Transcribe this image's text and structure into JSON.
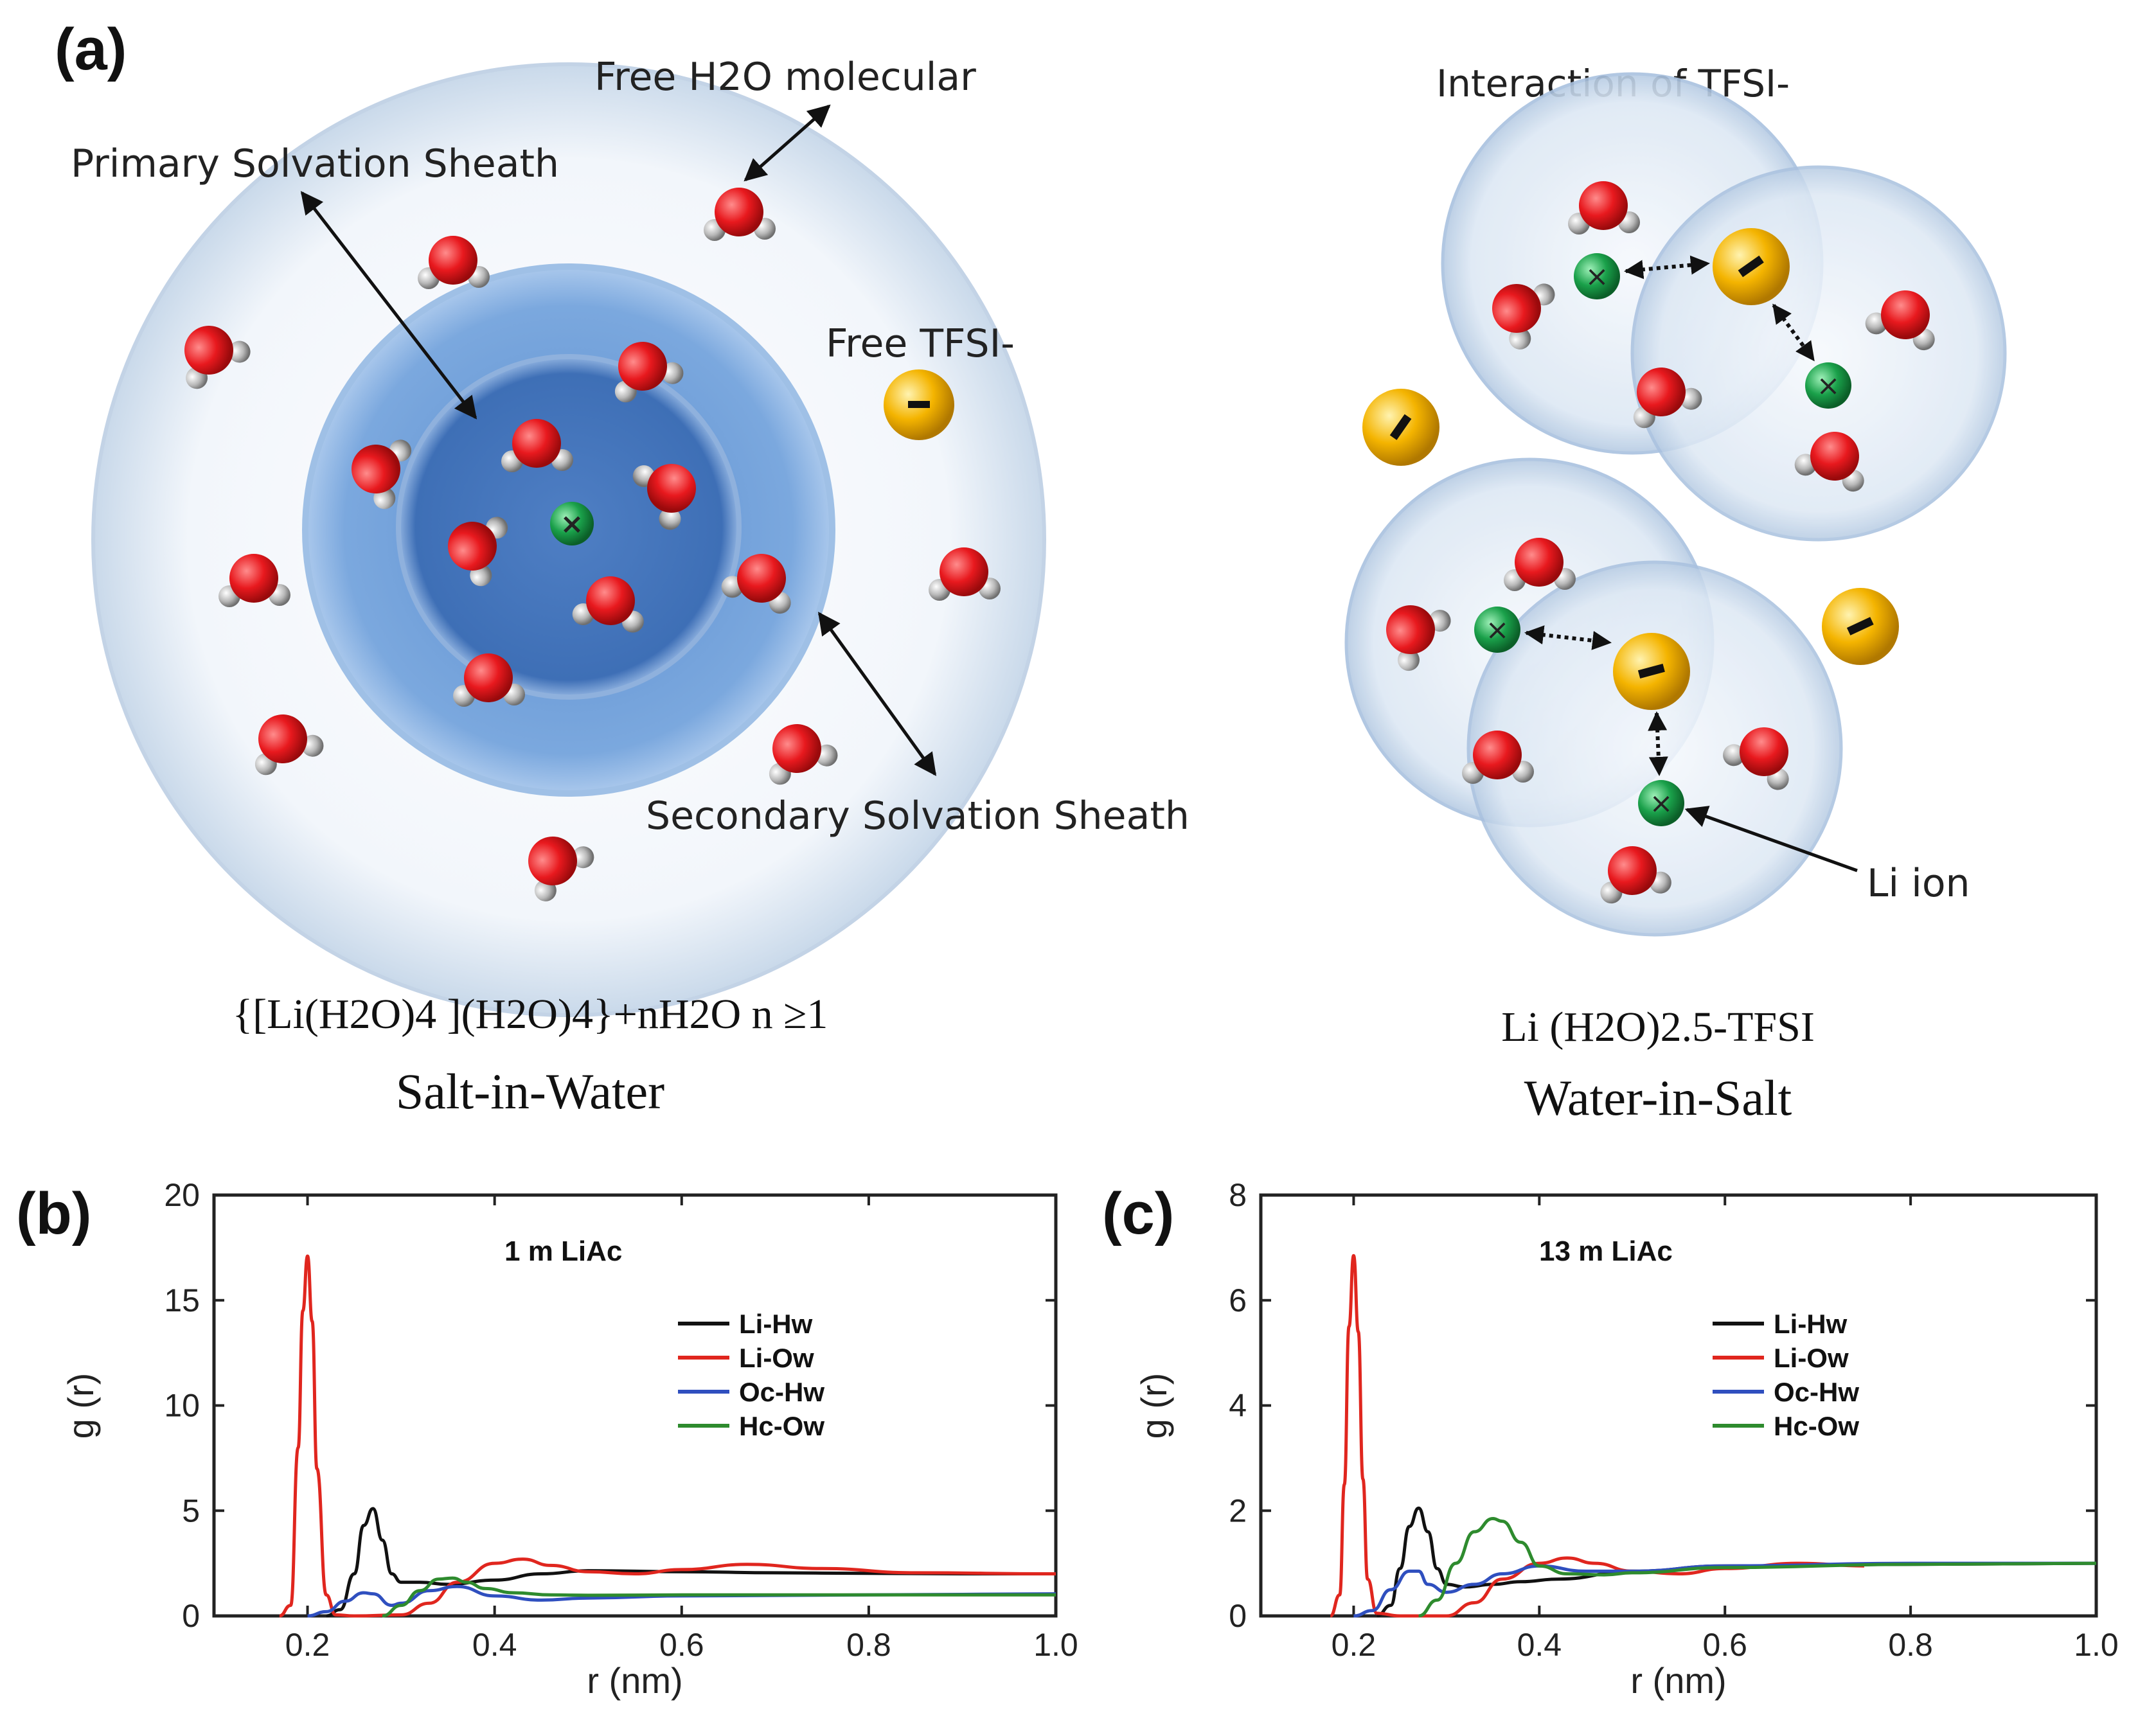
{
  "panel_a": {
    "label": "(a)",
    "free_h2o_label": "Free H2O molecular",
    "primary_label": "Primary  Solvation Sheath",
    "secondary_label": "Secondary Solvation Sheath",
    "free_tfsi_label": "Free TFSI-",
    "interaction_label": "Interaction  of  TFSI-",
    "li_ion_label": "Li ion",
    "left_formula": "{[Li(H2O)4 ](H2O)4}+nH2O n ≥1",
    "left_caption": "Salt-in-Water",
    "right_formula": "Li (H2O)2.5-TFSI",
    "right_caption": "Water-in-Salt",
    "colors": {
      "oxygen": "#e8191e",
      "hydrogen": "#b8b8b8",
      "li_ion": "#1aa04a",
      "tfsi": "#f4b400",
      "shell": "#dfe9f4"
    }
  },
  "chart_data": [
    {
      "type": "line",
      "panel_label": "(b)",
      "title": "1 m LiAc",
      "xlabel": "r (nm)",
      "ylabel": "g (r)",
      "xlim": [
        0.1,
        1.0
      ],
      "ylim": [
        0,
        20
      ],
      "xticks": [
        0.2,
        0.4,
        0.6,
        0.8,
        1.0
      ],
      "xtick_labels": [
        "0.2",
        "0.4",
        "0.6",
        "0.8",
        "1.0"
      ],
      "yticks": [
        0,
        5,
        10,
        15,
        20
      ],
      "ytick_labels": [
        "0",
        "5",
        "10",
        "15",
        "20"
      ],
      "legend_position": "upper-right",
      "series": [
        {
          "name": "Li-Hw",
          "color": "#111111",
          "x": [
            0.22,
            0.235,
            0.25,
            0.26,
            0.27,
            0.28,
            0.29,
            0.3,
            0.32,
            0.35,
            0.4,
            0.45,
            0.5,
            0.6,
            0.7,
            0.8,
            0.9,
            1.0
          ],
          "y": [
            0,
            0.3,
            2.0,
            4.3,
            5.1,
            3.6,
            2.0,
            1.6,
            1.6,
            1.5,
            1.7,
            2.0,
            2.15,
            2.1,
            2.05,
            2.02,
            2.0,
            2.0
          ]
        },
        {
          "name": "Li-Ow",
          "color": "#e0261e",
          "x": [
            0.17,
            0.182,
            0.19,
            0.195,
            0.2,
            0.205,
            0.21,
            0.22,
            0.23,
            0.25,
            0.3,
            0.33,
            0.36,
            0.4,
            0.43,
            0.46,
            0.5,
            0.55,
            0.6,
            0.67,
            0.75,
            0.85,
            1.0
          ],
          "y": [
            0,
            0.5,
            8.0,
            14.5,
            17.1,
            14.0,
            7.0,
            1.0,
            0.05,
            0.0,
            0.05,
            0.6,
            1.6,
            2.5,
            2.7,
            2.4,
            2.1,
            2.0,
            2.2,
            2.45,
            2.25,
            2.05,
            2.0
          ]
        },
        {
          "name": "Oc-Hw",
          "color": "#2f4fbf",
          "x": [
            0.2,
            0.22,
            0.24,
            0.26,
            0.27,
            0.29,
            0.3,
            0.33,
            0.36,
            0.4,
            0.45,
            0.5,
            0.6,
            0.8,
            1.0
          ],
          "y": [
            0,
            0.2,
            0.7,
            1.1,
            1.05,
            0.5,
            0.6,
            1.2,
            1.4,
            0.95,
            0.75,
            0.85,
            0.95,
            1.0,
            1.05
          ]
        },
        {
          "name": "Hc-Ow",
          "color": "#2e8b2e",
          "x": [
            0.28,
            0.3,
            0.32,
            0.34,
            0.355,
            0.37,
            0.39,
            0.42,
            0.46,
            0.5,
            0.6,
            0.8,
            1.0
          ],
          "y": [
            0,
            0.5,
            1.2,
            1.75,
            1.8,
            1.6,
            1.3,
            1.1,
            1.0,
            0.98,
            1.0,
            1.0,
            1.0
          ]
        }
      ]
    },
    {
      "type": "line",
      "panel_label": "(c)",
      "title": "13 m LiAc",
      "xlabel": "r (nm)",
      "ylabel": "g (r)",
      "xlim": [
        0.1,
        1.0
      ],
      "ylim": [
        0,
        8
      ],
      "xticks": [
        0.2,
        0.4,
        0.6,
        0.8,
        1.0
      ],
      "xtick_labels": [
        "0.2",
        "0.4",
        "0.6",
        "0.8",
        "1.0"
      ],
      "yticks": [
        0,
        2,
        4,
        6,
        8
      ],
      "ytick_labels": [
        "0",
        "2",
        "4",
        "6",
        "8"
      ],
      "legend_position": "upper-right",
      "series": [
        {
          "name": "Li-Hw",
          "color": "#111111",
          "x": [
            0.225,
            0.24,
            0.25,
            0.26,
            0.27,
            0.28,
            0.29,
            0.3,
            0.32,
            0.35,
            0.38,
            0.42,
            0.5,
            0.6,
            0.8,
            1.0
          ],
          "y": [
            0,
            0.2,
            0.9,
            1.7,
            2.05,
            1.6,
            0.9,
            0.6,
            0.55,
            0.6,
            0.65,
            0.7,
            0.85,
            0.95,
            0.98,
            1.0
          ]
        },
        {
          "name": "Li-Ow",
          "color": "#e0261e",
          "x": [
            0.175,
            0.185,
            0.19,
            0.195,
            0.2,
            0.205,
            0.21,
            0.215,
            0.225,
            0.25,
            0.3,
            0.33,
            0.36,
            0.4,
            0.43,
            0.46,
            0.5,
            0.55,
            0.6,
            0.68,
            0.75
          ],
          "y": [
            0,
            0.4,
            2.5,
            5.5,
            6.85,
            5.4,
            2.6,
            0.7,
            0.05,
            0.0,
            0.0,
            0.25,
            0.7,
            1.0,
            1.1,
            1.0,
            0.85,
            0.8,
            0.9,
            1.0,
            0.95
          ]
        },
        {
          "name": "Oc-Hw",
          "color": "#2f4fbf",
          "x": [
            0.2,
            0.22,
            0.24,
            0.26,
            0.27,
            0.28,
            0.3,
            0.33,
            0.36,
            0.4,
            0.45,
            0.5,
            0.6,
            0.8,
            1.0
          ],
          "y": [
            0,
            0.1,
            0.5,
            0.85,
            0.85,
            0.6,
            0.45,
            0.6,
            0.8,
            0.95,
            0.85,
            0.85,
            0.95,
            1.0,
            1.0
          ]
        },
        {
          "name": "Hc-Ow",
          "color": "#2e8b2e",
          "x": [
            0.27,
            0.29,
            0.31,
            0.33,
            0.35,
            0.36,
            0.38,
            0.4,
            0.43,
            0.47,
            0.5,
            0.6,
            0.8,
            1.0
          ],
          "y": [
            0,
            0.3,
            1.0,
            1.6,
            1.85,
            1.8,
            1.4,
            0.95,
            0.8,
            0.78,
            0.82,
            0.92,
            0.98,
            1.0
          ]
        }
      ]
    }
  ]
}
